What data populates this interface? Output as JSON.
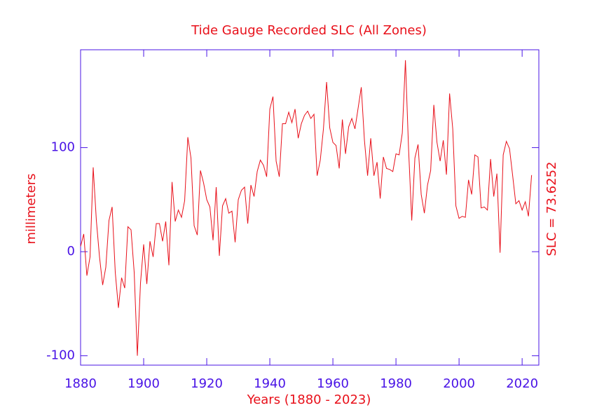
{
  "chart_data": {
    "type": "line",
    "title": "Tide Gauge Recorded SLC (All Zones)",
    "x_label": "Years (1880 - 2023)",
    "y_label": "millimeters",
    "annotation": "SLC = 73.6252",
    "xlim": [
      1880,
      2025.3
    ],
    "ylim": [
      -109,
      194
    ],
    "xticks": [
      1880,
      1900,
      1920,
      1940,
      1960,
      1980,
      2000,
      2020
    ],
    "yticks": [
      -100,
      0,
      100
    ],
    "axis_color": "#4a14e6",
    "series": [
      {
        "name": "SLC",
        "color": "#e8101a",
        "x": [
          1880,
          1881,
          1882,
          1883,
          1884,
          1885,
          1886,
          1887,
          1888,
          1889,
          1890,
          1891,
          1892,
          1893,
          1894,
          1895,
          1896,
          1897,
          1898,
          1899,
          1900,
          1901,
          1902,
          1903,
          1904,
          1905,
          1906,
          1907,
          1908,
          1909,
          1910,
          1911,
          1912,
          1913,
          1914,
          1915,
          1916,
          1917,
          1918,
          1919,
          1920,
          1921,
          1922,
          1923,
          1924,
          1925,
          1926,
          1927,
          1928,
          1929,
          1930,
          1931,
          1932,
          1933,
          1934,
          1935,
          1936,
          1937,
          1938,
          1939,
          1940,
          1941,
          1942,
          1943,
          1944,
          1945,
          1946,
          1947,
          1948,
          1949,
          1950,
          1951,
          1952,
          1953,
          1954,
          1955,
          1956,
          1957,
          1958,
          1959,
          1960,
          1961,
          1962,
          1963,
          1964,
          1965,
          1966,
          1967,
          1968,
          1969,
          1970,
          1971,
          1972,
          1973,
          1974,
          1975,
          1976,
          1977,
          1978,
          1979,
          1980,
          1981,
          1982,
          1983,
          1984,
          1985,
          1986,
          1987,
          1988,
          1989,
          1990,
          1991,
          1992,
          1993,
          1994,
          1995,
          1996,
          1997,
          1998,
          1999,
          2000,
          2001,
          2002,
          2003,
          2004,
          2005,
          2006,
          2007,
          2008,
          2009,
          2010,
          2011,
          2012,
          2013,
          2014,
          2015,
          2016,
          2017,
          2018,
          2019,
          2020,
          2021,
          2022,
          2023
        ],
        "values": [
          5,
          17,
          -23,
          -5,
          81,
          30,
          -5,
          -32,
          -15,
          30,
          43,
          -20,
          -54,
          -25,
          -35,
          24,
          21,
          -20,
          -100,
          -30,
          7,
          -31,
          10,
          -5,
          27,
          27,
          10,
          29,
          -13,
          67,
          29,
          40,
          33,
          49,
          110,
          90,
          25,
          16,
          78,
          66,
          50,
          43,
          11,
          62,
          -4,
          44,
          51,
          37,
          39,
          9,
          50,
          59,
          62,
          27,
          64,
          53,
          77,
          88,
          83,
          72,
          137,
          149,
          87,
          72,
          123,
          123,
          134,
          124,
          137,
          109,
          123,
          131,
          135,
          128,
          132,
          73,
          88,
          118,
          163,
          119,
          105,
          102,
          80,
          127,
          94,
          120,
          128,
          118,
          138,
          158,
          107,
          73,
          109,
          73,
          86,
          51,
          91,
          80,
          79,
          77,
          94,
          93,
          114,
          184,
          98,
          30,
          90,
          103,
          55,
          37,
          64,
          78,
          141,
          105,
          87,
          107,
          74,
          152,
          118,
          44,
          32,
          34,
          33,
          69,
          55,
          93,
          91,
          42,
          43,
          40,
          89,
          53,
          75,
          -1,
          93,
          106,
          99,
          73,
          46,
          49,
          40,
          48,
          34,
          73.6
        ]
      }
    ]
  }
}
